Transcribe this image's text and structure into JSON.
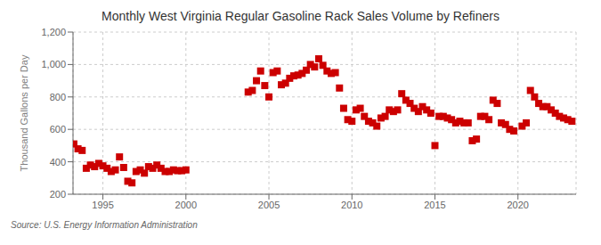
{
  "chart_data": {
    "type": "scatter",
    "title": "Monthly West Virginia Regular Gasoline Rack Sales Volume by Refiners",
    "ylabel": "Thousand Gallons per Day",
    "source": "Source: U.S. Energy Information Administration",
    "color": "#cc0000",
    "marker": "square",
    "grid": true,
    "xlim": [
      1993.2,
      2023.5
    ],
    "xticks": [
      1995,
      2000,
      2005,
      2010,
      2015,
      2020
    ],
    "ylim": [
      200,
      1200
    ],
    "yticks": [
      200,
      400,
      600,
      800,
      {
        "value": 1000,
        "label": "1,000"
      },
      {
        "value": 1200,
        "label": "1,200"
      }
    ],
    "x": [
      1993.25,
      1993.5,
      1993.75,
      1994.0,
      1994.25,
      1994.5,
      1994.75,
      1995.0,
      1995.25,
      1995.5,
      1995.75,
      1996.0,
      1996.25,
      1996.5,
      1996.75,
      1997.0,
      1997.25,
      1997.5,
      1997.75,
      1998.0,
      1998.25,
      1998.5,
      1998.75,
      1999.0,
      1999.25,
      1999.5,
      1999.75,
      2000.0,
      2003.75,
      2004.0,
      2004.25,
      2004.5,
      2004.75,
      2005.0,
      2005.25,
      2005.5,
      2005.75,
      2006.0,
      2006.25,
      2006.5,
      2006.75,
      2007.0,
      2007.25,
      2007.5,
      2007.75,
      2008.0,
      2008.25,
      2008.5,
      2008.75,
      2009.0,
      2009.25,
      2009.5,
      2009.75,
      2010.0,
      2010.25,
      2010.5,
      2010.75,
      2011.0,
      2011.25,
      2011.5,
      2011.75,
      2012.0,
      2012.25,
      2012.5,
      2012.75,
      2013.0,
      2013.25,
      2013.5,
      2013.75,
      2014.0,
      2014.25,
      2014.5,
      2014.75,
      2015.0,
      2015.25,
      2015.5,
      2015.75,
      2016.0,
      2016.25,
      2016.5,
      2016.75,
      2017.0,
      2017.25,
      2017.5,
      2017.75,
      2018.0,
      2018.25,
      2018.5,
      2018.75,
      2019.0,
      2019.25,
      2019.5,
      2019.75,
      2020.25,
      2020.5,
      2020.75,
      2021.0,
      2021.25,
      2021.5,
      2021.75,
      2022.0,
      2022.25,
      2022.5,
      2022.75,
      2023.0,
      2023.25
    ],
    "values": [
      510,
      480,
      470,
      360,
      380,
      370,
      390,
      375,
      360,
      340,
      350,
      430,
      365,
      280,
      270,
      340,
      350,
      330,
      370,
      360,
      380,
      360,
      340,
      340,
      350,
      345,
      345,
      350,
      830,
      840,
      900,
      960,
      870,
      800,
      950,
      960,
      875,
      885,
      915,
      930,
      935,
      945,
      965,
      1000,
      985,
      1035,
      995,
      960,
      945,
      950,
      855,
      730,
      660,
      650,
      720,
      730,
      680,
      650,
      640,
      620,
      670,
      680,
      720,
      710,
      720,
      820,
      780,
      760,
      730,
      710,
      740,
      720,
      700,
      500,
      680,
      680,
      670,
      660,
      640,
      650,
      640,
      640,
      530,
      540,
      680,
      680,
      660,
      780,
      760,
      640,
      630,
      600,
      590,
      620,
      640,
      840,
      800,
      760,
      740,
      740,
      720,
      700,
      680,
      670,
      660,
      650
    ]
  }
}
